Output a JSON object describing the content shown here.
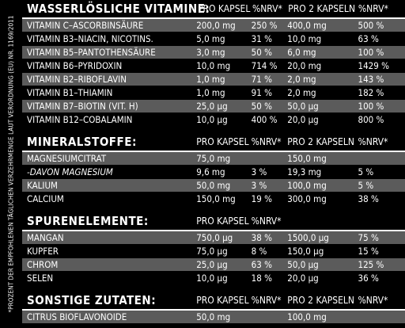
{
  "side_note": "*PROZENT DER EMPFOHLENEN TÄGLICHEN VERZEHRMENGE LAUT VERORDNUNG (EU) NR. 1169/2011",
  "sections": [
    {
      "title": "WASSERLÖSLICHE VITAMINE:",
      "headers": [
        "PRO KAPSEL",
        "%NRV*",
        "PRO 2 KAPSELN",
        "%NRV*"
      ],
      "rows": [
        {
          "name": "VITAMIN C–ASCORBINSÄURE",
          "v1": "200,0 mg",
          "p1": "250 %",
          "v2": "400,0 mg",
          "p2": "500 %"
        },
        {
          "name": "VITAMIN B3–NIACIN, NICOTINS.",
          "v1": "5,0 mg",
          "p1": "31 %",
          "v2": "10,0 mg",
          "p2": "63 %"
        },
        {
          "name": "VITAMIN B5–PANTOTHENSÄURE",
          "v1": "3,0 mg",
          "p1": "50 %",
          "v2": "6,0 mg",
          "p2": "100 %"
        },
        {
          "name": "VITAMIN B6–PYRIDOXIN",
          "v1": "10,0 mg",
          "p1": "714 %",
          "v2": "20,0 mg",
          "p2": "1429 %"
        },
        {
          "name": "VITAMIN B2–RIBOFLAVIN",
          "v1": "1,0 mg",
          "p1": "71 %",
          "v2": "2,0 mg",
          "p2": "143 %"
        },
        {
          "name": "VITAMIN B1–THIAMIN",
          "v1": "1,0 mg",
          "p1": "91 %",
          "v2": "2,0 mg",
          "p2": "182 %"
        },
        {
          "name": "VITAMIN B7–BIOTIN (VIT. H)",
          "v1": "25,0 μg",
          "p1": "50 %",
          "v2": "50,0 μg",
          "p2": "100 %"
        },
        {
          "name": "VITAMIN B12–COBALAMIN",
          "v1": "10,0 μg",
          "p1": "400 %",
          "v2": "20,0 μg",
          "p2": "800 %"
        }
      ]
    },
    {
      "title": "MINERALSTOFFE:",
      "headers": [
        "PRO KAPSEL",
        "%NRV*",
        "PRO 2 KAPSELN",
        "%NRV*"
      ],
      "rows": [
        {
          "name": "MAGNESIUMCITRAT",
          "v1": "75,0 mg",
          "p1": "",
          "v2": "150,0 mg",
          "p2": ""
        },
        {
          "name": "-DAVON MAGNESIUM",
          "italic": true,
          "v1": "9,6 mg",
          "p1": "3 %",
          "v2": "19,3 mg",
          "p2": "5 %"
        },
        {
          "name": "KALIUM",
          "v1": "50,0 mg",
          "p1": "3 %",
          "v2": "100,0 mg",
          "p2": "5 %"
        },
        {
          "name": "CALCIUM",
          "v1": "150,0 mg",
          "p1": "19 %",
          "v2": "300,0 mg",
          "p2": "38 %"
        }
      ]
    },
    {
      "title": "SPURENELEMENTE:",
      "headers": [
        "PRO KAPSEL",
        "%NRV*",
        "",
        ""
      ],
      "rows": [
        {
          "name": "MANGAN",
          "v1": "750,0 μg",
          "p1": "38 %",
          "v2": "1500,0 μg",
          "p2": "75 %"
        },
        {
          "name": "KUPFER",
          "v1": "75,0 μg",
          "p1": "8 %",
          "v2": "150,0 μg",
          "p2": "15 %"
        },
        {
          "name": "CHROM",
          "v1": "25,0 μg",
          "p1": "63 %",
          "v2": "50,0 μg",
          "p2": "125 %"
        },
        {
          "name": "SELEN",
          "v1": "10,0 μg",
          "p1": "18 %",
          "v2": "20,0 μg",
          "p2": "36 %"
        }
      ]
    },
    {
      "title": "SONSTIGE ZUTATEN:",
      "headers": [
        "PRO KAPSEL",
        "%NRV*",
        "PRO 2 KAPSELN",
        "%NRV*"
      ],
      "rows": [
        {
          "name": "CITRUS BIOFLAVONOIDE",
          "v1": "50,0 mg",
          "p1": "",
          "v2": "100,0 mg",
          "p2": ""
        }
      ]
    }
  ]
}
